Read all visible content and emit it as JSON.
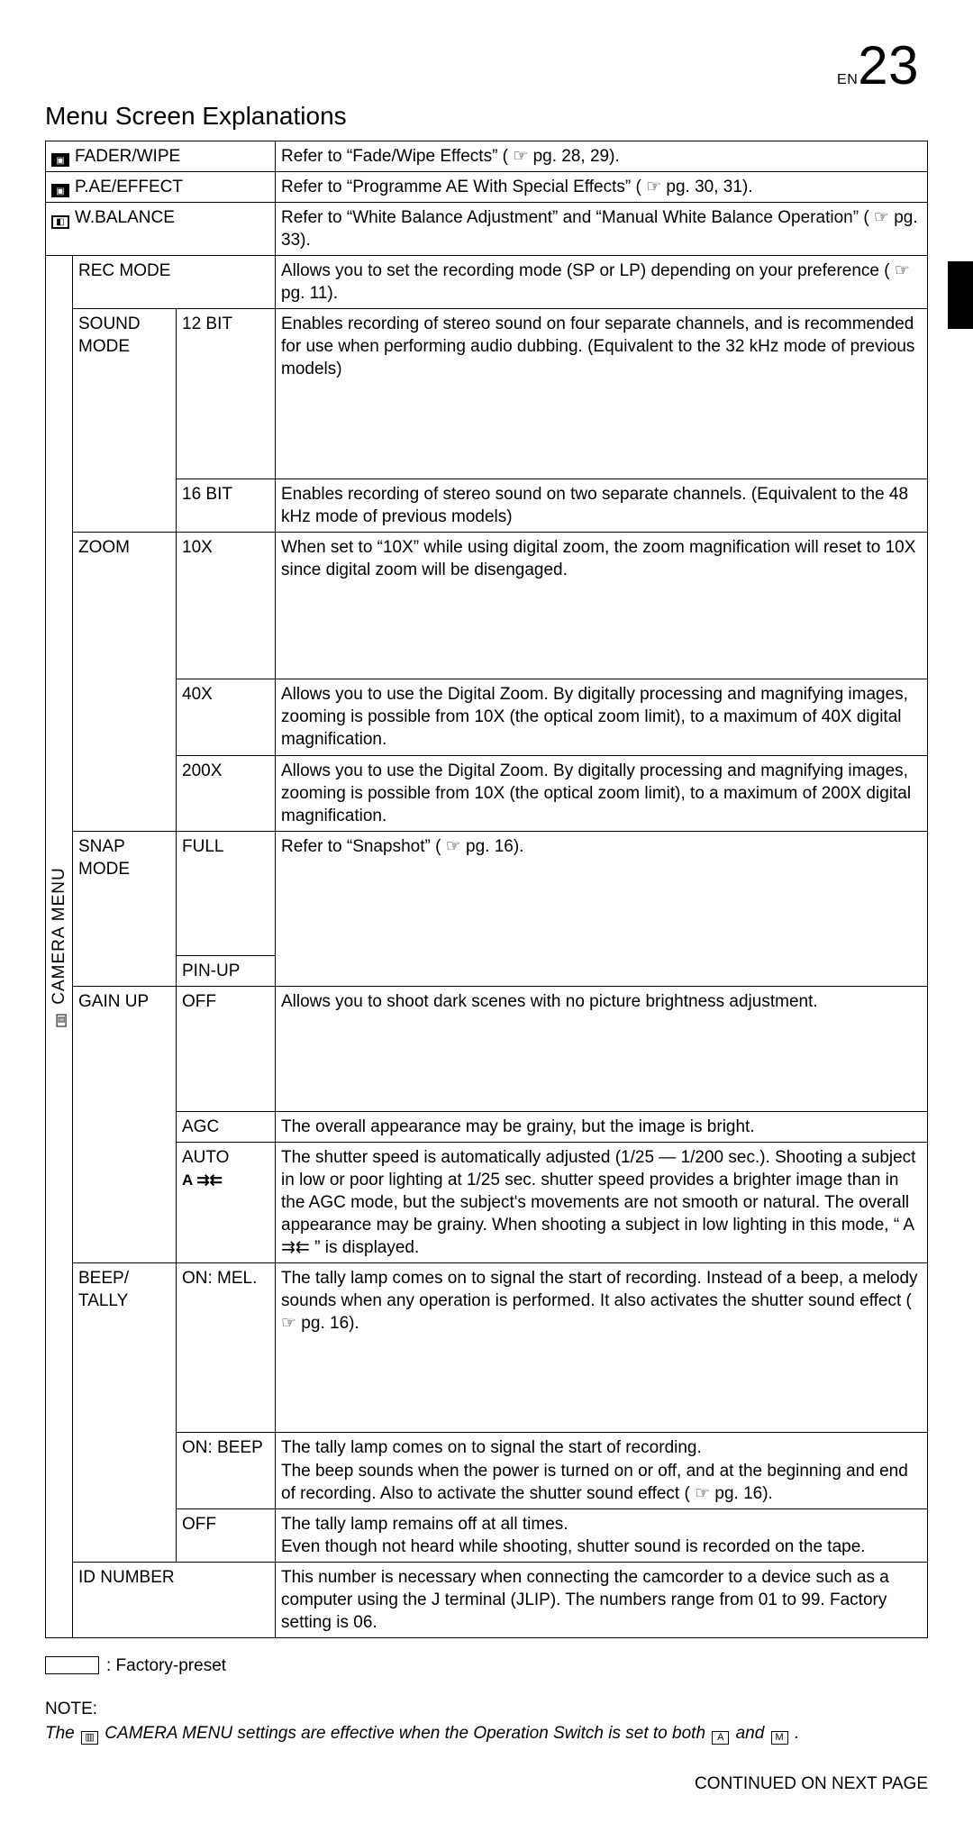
{
  "page_label_prefix": "EN",
  "page_number": "23",
  "title": "Menu Screen Explanations",
  "side_label": "CAMERA MENU",
  "head_rows": [
    {
      "name": "FADER/WIPE",
      "desc": "Refer to “Fade/Wipe Effects” ( ☞ pg. 28, 29)."
    },
    {
      "name": "P.AE/EFFECT",
      "desc": "Refer to “Programme AE With Special Effects” ( ☞ pg. 30, 31)."
    },
    {
      "name": "W.BALANCE",
      "desc": "Refer to “White Balance Adjustment” and “Manual White Balance Operation” ( ☞ pg. 33)."
    }
  ],
  "rows": {
    "rec_mode": {
      "name": "REC MODE",
      "desc": "Allows you to set the recording mode (SP or LP) depending on your preference ( ☞ pg. 11)."
    },
    "sound_mode": {
      "name": "SOUND MODE"
    },
    "sound_12": {
      "opt": "12 BIT",
      "desc": "Enables recording of stereo sound on four separate channels, and is recommended for use when performing audio dubbing. (Equivalent to the 32 kHz mode of previous models)"
    },
    "sound_16": {
      "opt": "16 BIT",
      "desc": "Enables recording of stereo sound on two separate channels. (Equivalent to the 48 kHz mode of previous models)"
    },
    "zoom": {
      "name": "ZOOM"
    },
    "zoom_10": {
      "opt": "10X",
      "desc": "When set to “10X” while using digital zoom, the zoom magnification will reset to 10X since digital zoom will be disengaged."
    },
    "zoom_40": {
      "opt": "40X",
      "desc": "Allows you to use the Digital Zoom. By digitally processing and magnifying images, zooming is possible from 10X (the optical zoom limit), to a maximum of 40X digital magnification."
    },
    "zoom_200": {
      "opt": "200X",
      "desc": "Allows you to use the Digital Zoom. By digitally processing and magnifying images, zooming is possible from 10X (the optical zoom limit), to a maximum of 200X digital magnification."
    },
    "snap": {
      "name": "SNAP MODE",
      "opt1": "FULL",
      "opt2": "PIN-UP",
      "desc": "Refer to “Snapshot” ( ☞ pg. 16)."
    },
    "gain": {
      "name": "GAIN UP"
    },
    "gain_off": {
      "opt": "OFF",
      "desc": "Allows you to shoot dark scenes with no picture brightness adjustment."
    },
    "gain_agc": {
      "opt": "AGC",
      "desc": "The overall appearance may be grainy, but the image is bright."
    },
    "gain_auto": {
      "opt": "AUTO",
      "sym": "A ⇉⇇",
      "desc": "The shutter speed is automatically adjusted (1/25 — 1/200 sec.). Shooting a subject in low or poor lighting at 1/25 sec. shutter speed provides a brighter image than in the AGC mode, but the subject's movements are not smooth or natural. The overall appearance may be grainy. When shooting a subject in low lighting in this mode, “ A ⇉⇇ ” is displayed."
    },
    "beep": {
      "name": "BEEP/ TALLY"
    },
    "beep_mel": {
      "opt": "ON: MEL.",
      "desc": "The tally lamp comes on to signal the start of recording. Instead of a beep, a melody sounds when any operation is performed. It also activates the shutter sound effect ( ☞ pg. 16)."
    },
    "beep_beep": {
      "opt": "ON: BEEP",
      "desc": "The tally lamp comes on to signal the start of recording.\nThe beep sounds when the power is turned on or off, and at the beginning and end of recording. Also to activate the shutter sound effect ( ☞ pg. 16)."
    },
    "beep_off": {
      "opt": "OFF",
      "desc": "The tally lamp remains off at all times.\nEven though not heard while shooting, shutter sound is recorded on the tape."
    },
    "idnum": {
      "name": "ID NUMBER",
      "desc": "This number is necessary when connecting the camcorder to a device such as a computer using the J terminal (JLIP). The numbers range from 01 to 99. Factory setting is 06."
    }
  },
  "legend": ": Factory-preset",
  "note_heading": "NOTE:",
  "note_body_1": "The ",
  "note_body_2": " CAMERA MENU settings are effective when the Operation Switch is set to both ",
  "note_body_3": " and ",
  "note_body_4": " .",
  "note_icon_a": "A",
  "note_icon_m": "M",
  "continued": "CONTINUED ON NEXT PAGE",
  "colors": {
    "text": "#000000",
    "bg": "#ffffff",
    "border": "#000000"
  }
}
